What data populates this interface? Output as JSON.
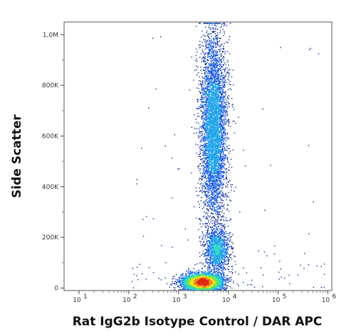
{
  "chart_data": {
    "type": "scatter",
    "title": "",
    "xlabel": "Rat IgG2b Isotype Control / DAR APC",
    "ylabel": "Side Scatter",
    "x_scale": "log",
    "xlim": [
      5,
      1200000
    ],
    "ylim": [
      -10000,
      1050000
    ],
    "x_ticks": [
      {
        "value": 10,
        "base": "10",
        "exp": "1"
      },
      {
        "value": 100,
        "base": "10",
        "exp": "2"
      },
      {
        "value": 1000,
        "base": "10",
        "exp": "3"
      },
      {
        "value": 10000,
        "base": "10",
        "exp": "4"
      },
      {
        "value": 100000,
        "base": "10",
        "exp": "5"
      },
      {
        "value": 1000000,
        "base": "10",
        "exp": "6"
      }
    ],
    "y_ticks": [
      {
        "value": 0,
        "label": "0"
      },
      {
        "value": 200000,
        "label": "200K"
      },
      {
        "value": 400000,
        "label": "400K"
      },
      {
        "value": 600000,
        "label": "600K"
      },
      {
        "value": 800000,
        "label": "800K"
      },
      {
        "value": 1000000,
        "label": "1,0M"
      }
    ],
    "populations": [
      {
        "x_center": 5000,
        "y_center": 630000,
        "y_spread": 180000,
        "x_spread_log": 0.13,
        "events": 5200
      },
      {
        "x_center": 5800,
        "y_center": 150000,
        "y_spread": 45000,
        "x_spread_log": 0.12,
        "events": 1400
      },
      {
        "x_center": 3000,
        "y_center": 25000,
        "y_spread": 16000,
        "x_spread_log": 0.2,
        "events": 4200
      }
    ],
    "colormap": [
      "#0b2a9e",
      "#1d5be0",
      "#22a4e8",
      "#2fdcc4",
      "#6fe64a",
      "#e8e626",
      "#f28a1a",
      "#e02a14"
    ],
    "grid": false,
    "legend": "none"
  }
}
